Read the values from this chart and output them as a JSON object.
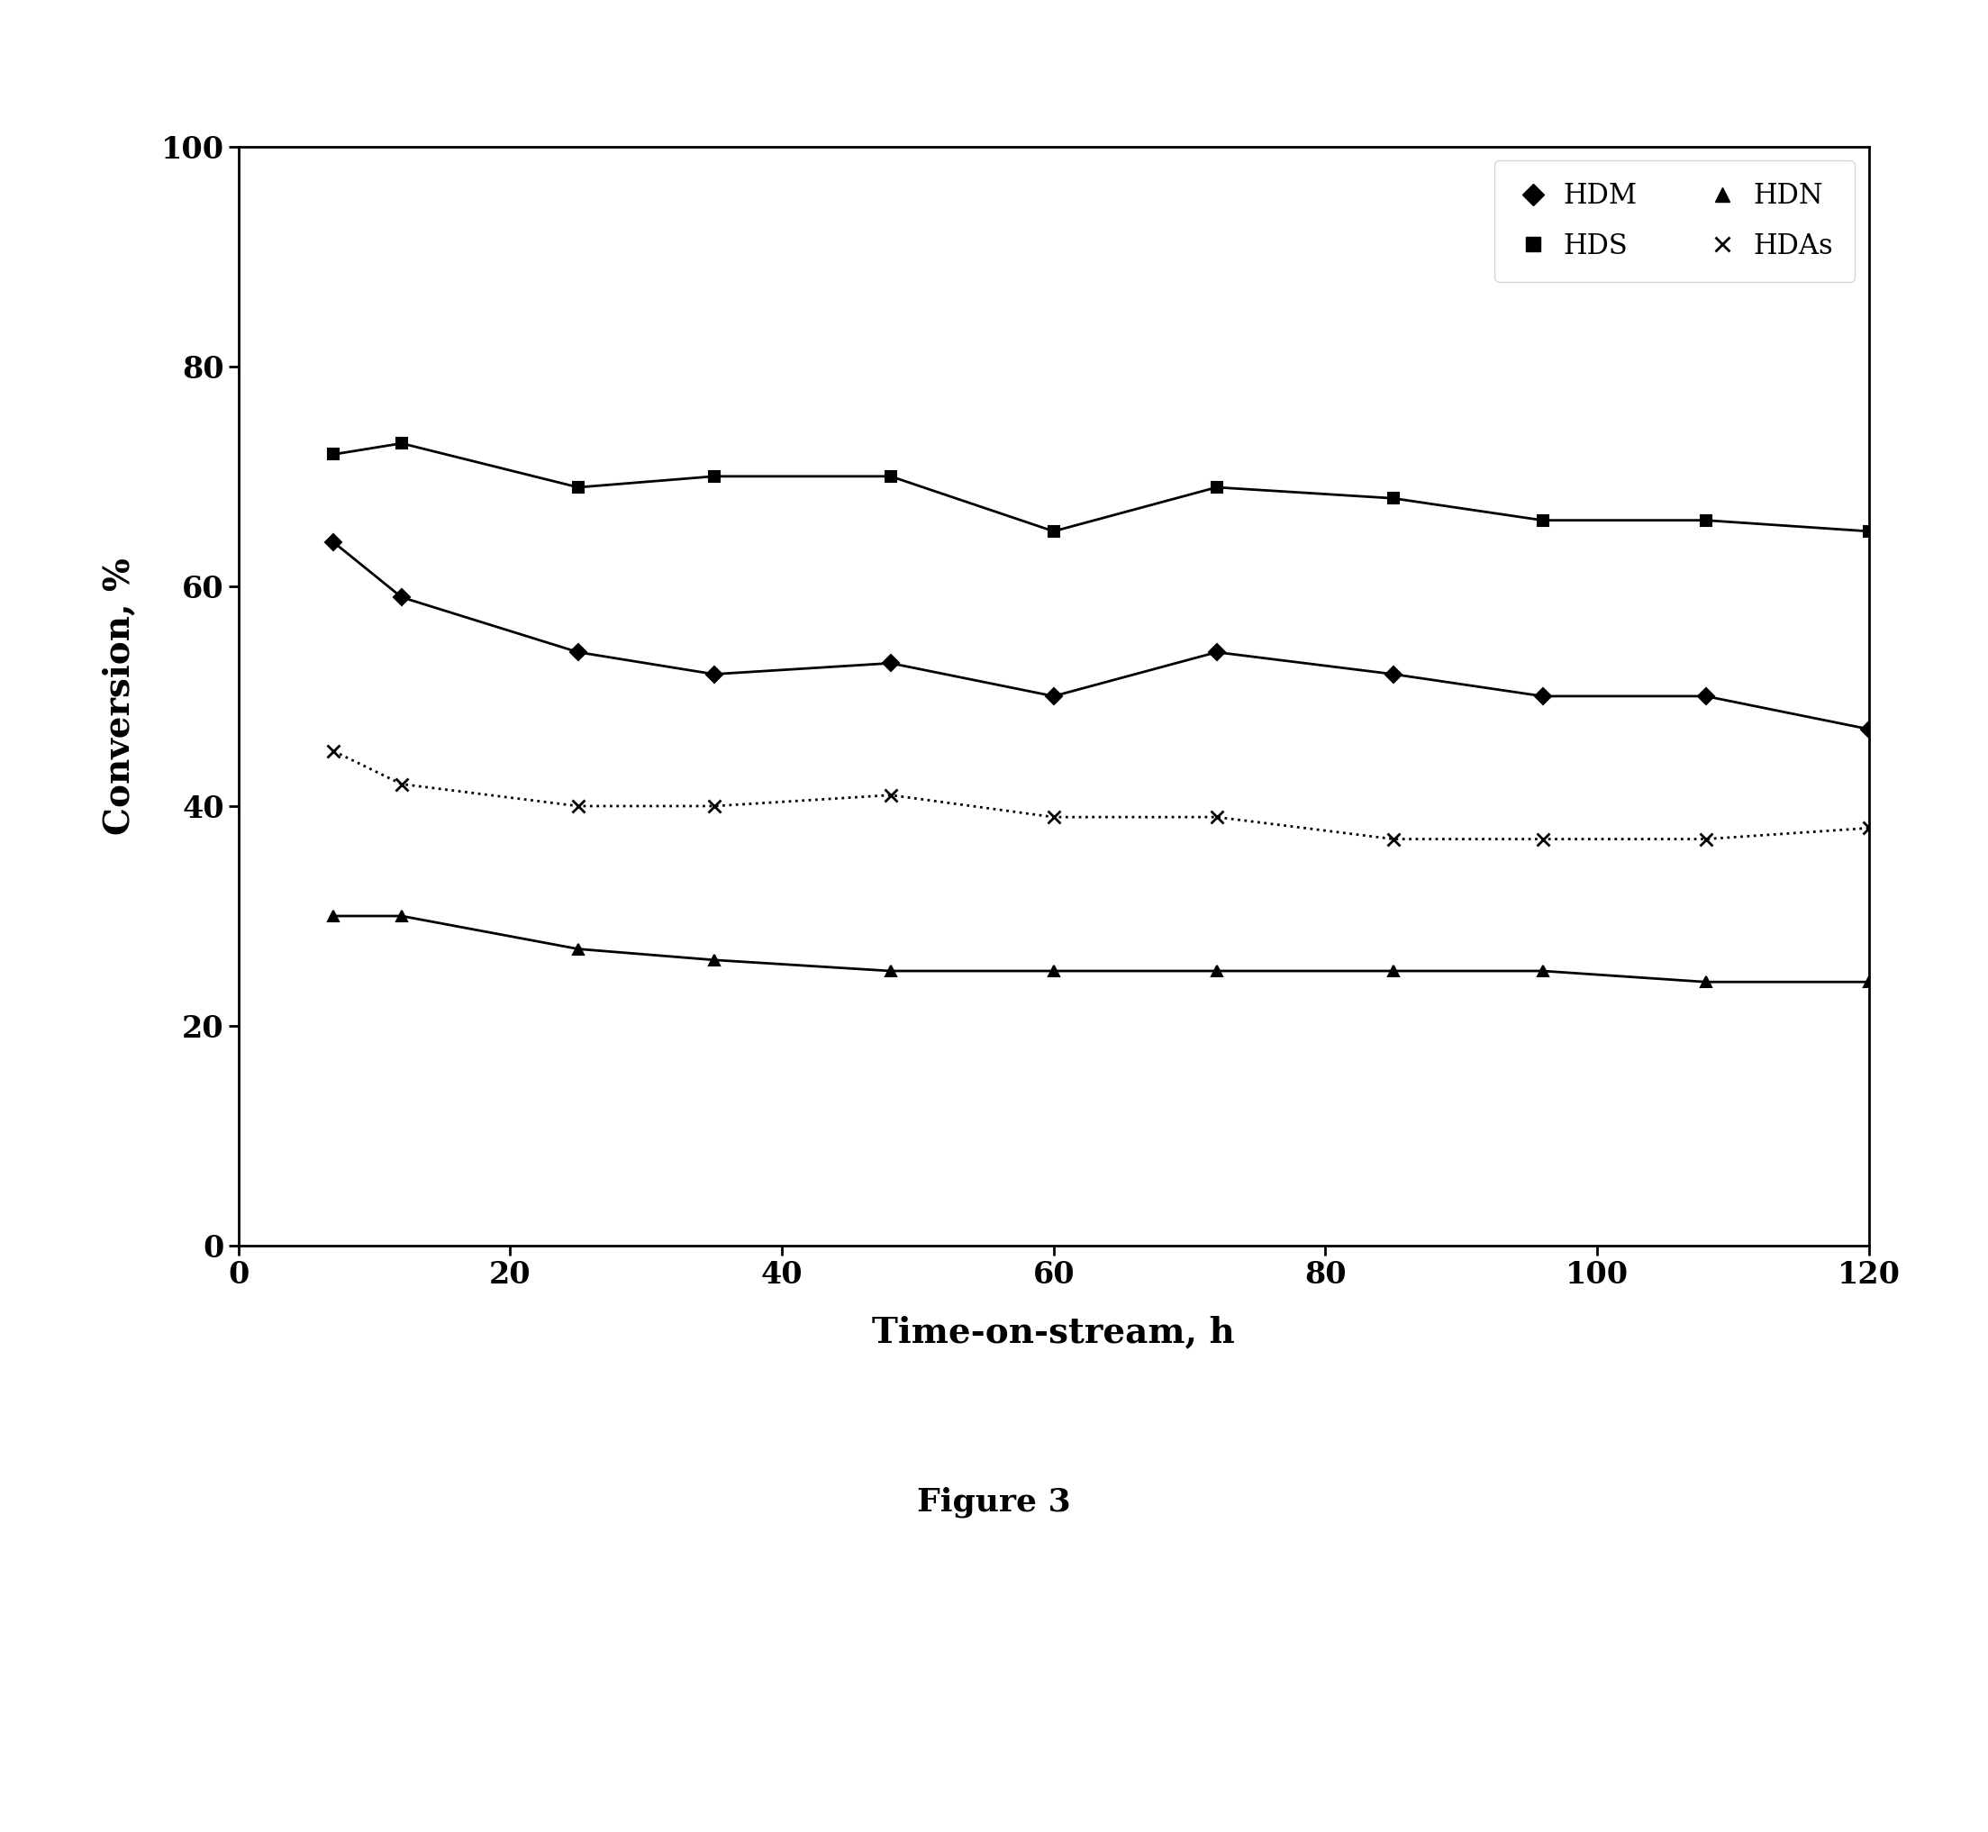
{
  "title": "",
  "xlabel": "Time-on-stream, h",
  "ylabel": "Conversion, %",
  "xlim": [
    0,
    120
  ],
  "ylim": [
    0,
    100
  ],
  "xticks": [
    0,
    20,
    40,
    60,
    80,
    100,
    120
  ],
  "yticks": [
    0,
    20,
    40,
    60,
    80,
    100
  ],
  "figure_caption": "Figure 3",
  "HDM": {
    "x": [
      7,
      12,
      25,
      35,
      48,
      60,
      72,
      85,
      96,
      108,
      120
    ],
    "y": [
      64,
      59,
      54,
      52,
      53,
      50,
      54,
      52,
      50,
      50,
      47
    ],
    "marker": "D",
    "linestyle": "-",
    "color": "black",
    "label": "HDM",
    "markersize": 9,
    "linewidth": 2.0
  },
  "HDS": {
    "x": [
      7,
      12,
      25,
      35,
      48,
      60,
      72,
      85,
      96,
      108,
      120
    ],
    "y": [
      72,
      73,
      69,
      70,
      70,
      65,
      69,
      68,
      66,
      66,
      65
    ],
    "marker": "s",
    "linestyle": "-",
    "color": "black",
    "label": "HDS",
    "markersize": 9,
    "linewidth": 2.0
  },
  "HDN": {
    "x": [
      7,
      12,
      25,
      35,
      48,
      60,
      72,
      85,
      96,
      108,
      120
    ],
    "y": [
      30,
      30,
      27,
      26,
      25,
      25,
      25,
      25,
      25,
      24,
      24
    ],
    "marker": "^",
    "linestyle": "-",
    "color": "black",
    "label": "HDN",
    "markersize": 9,
    "linewidth": 2.0
  },
  "HDAs": {
    "x": [
      7,
      12,
      25,
      35,
      48,
      60,
      72,
      85,
      96,
      108,
      120
    ],
    "y": [
      45,
      42,
      40,
      40,
      41,
      39,
      39,
      37,
      37,
      37,
      38
    ],
    "marker": "x",
    "linestyle": ":",
    "color": "black",
    "label": "HDAs",
    "markersize": 10,
    "linewidth": 2.0,
    "markeredgewidth": 2.0
  }
}
